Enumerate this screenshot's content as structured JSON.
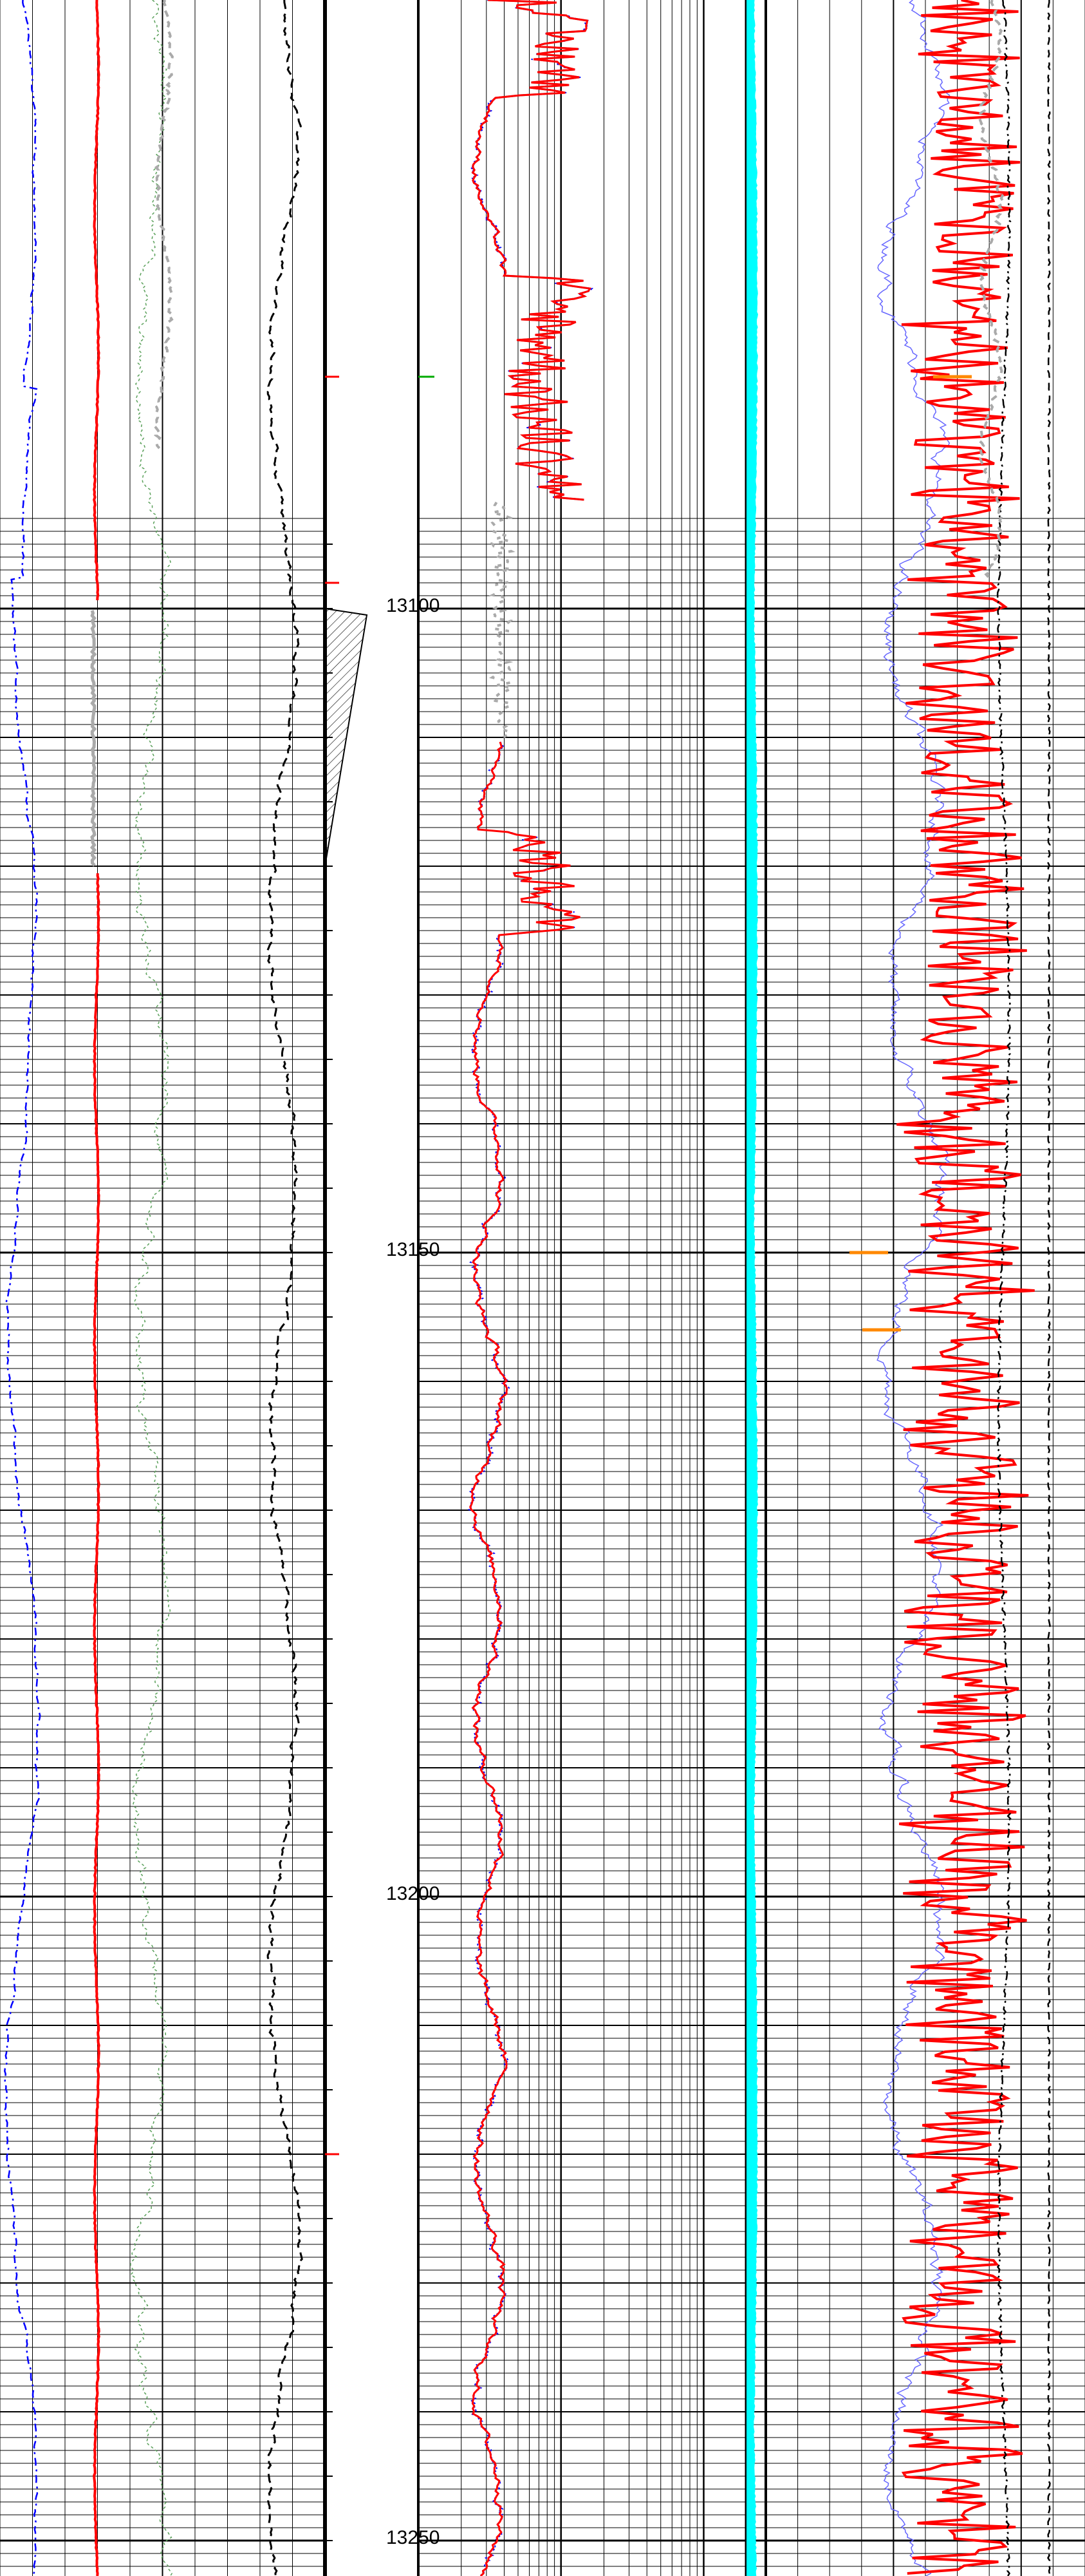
{
  "chart_data": {
    "type": "line",
    "title": "",
    "xlabel": "",
    "ylabel": "",
    "depth_range": [
      13093,
      13252
    ],
    "depth_ticks": [
      13100,
      13150,
      13200,
      13250
    ],
    "depth_tick_labels": [
      "13100",
      "13150",
      "13200",
      "13250"
    ],
    "grid": true,
    "tracks": [
      {
        "name": "track-1",
        "scale": "linear",
        "series_colors": [
          "#0000ff",
          "#ff0000",
          "#5aa05a",
          "#000000",
          "#aaaaaa"
        ]
      },
      {
        "name": "depth-track",
        "scale": "linear"
      },
      {
        "name": "track-2",
        "scale": "log",
        "series_colors": [
          "#ff0000",
          "#0000ff",
          "#888888"
        ]
      },
      {
        "name": "track-3",
        "scale": "linear",
        "series_colors": [
          "#00ffff"
        ]
      },
      {
        "name": "track-4",
        "scale": "linear",
        "series_colors": [
          "#ff0000",
          "#6666ff",
          "#000000",
          "#aaaaaa",
          "#ff8800"
        ]
      }
    ],
    "annotations": {
      "core_interval": [
        13100,
        13120
      ],
      "markers": [
        13082,
        13098,
        13220
      ]
    }
  }
}
